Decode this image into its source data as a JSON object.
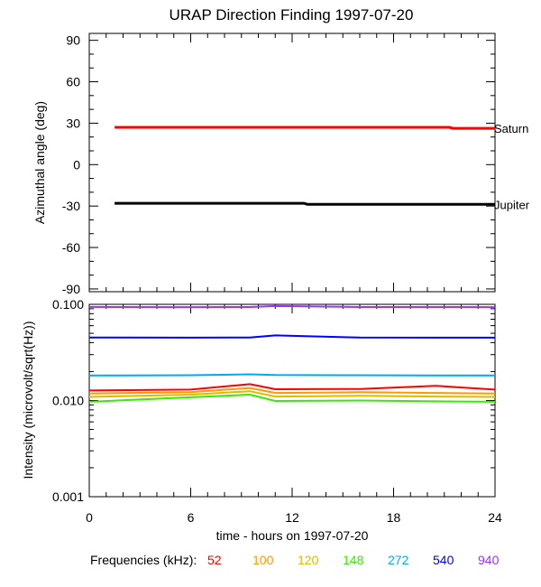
{
  "title": "URAP Direction Finding  1997-07-20",
  "chart_data": [
    {
      "type": "line",
      "ylabel": "Azimuthal angle (deg)",
      "ylim": [
        -92,
        95
      ],
      "yticks": [
        "90",
        "60",
        "30",
        "0",
        "-30",
        "-60",
        "-90"
      ],
      "xlim": [
        0,
        24
      ],
      "series": [
        {
          "name": "Saturn",
          "color": "#ff0000",
          "points": [
            [
              1.5,
              27
            ],
            [
              21.3,
              27
            ],
            [
              21.5,
              26.3
            ],
            [
              24,
              26.3
            ]
          ]
        },
        {
          "name": "Jupiter",
          "color": "#000000",
          "points": [
            [
              1.5,
              -28
            ],
            [
              12.7,
              -28
            ],
            [
              12.9,
              -28.8
            ],
            [
              24,
              -28.8
            ]
          ]
        }
      ]
    },
    {
      "type": "line",
      "ylabel": "Intensity (microvolt/sqrt(Hz))",
      "yscale": "log",
      "ylim": [
        0.001,
        0.1
      ],
      "yticks": [
        "0.100",
        "0.010",
        "0.001"
      ],
      "xlabel": "time - hours on 1997-07-20",
      "xlim": [
        0,
        24
      ],
      "xticks": [
        "0",
        "6",
        "12",
        "18",
        "24"
      ],
      "legend_label": "Frequencies (kHz):",
      "series": [
        {
          "name": "52",
          "color": "#ff0000",
          "x": [
            0,
            6,
            9.5,
            11,
            16,
            20.5,
            24
          ],
          "y": [
            0.0127,
            0.013,
            0.0148,
            0.0131,
            0.0132,
            0.0142,
            0.013
          ]
        },
        {
          "name": "100",
          "color": "#ff9900",
          "x": [
            0,
            6,
            9.5,
            11,
            16,
            20.5,
            24
          ],
          "y": [
            0.0118,
            0.0122,
            0.0135,
            0.012,
            0.0122,
            0.012,
            0.0118
          ]
        },
        {
          "name": "120",
          "color": "#ddbb00",
          "x": [
            0,
            6,
            9.5,
            11,
            16,
            20.5,
            24
          ],
          "y": [
            0.0109,
            0.0115,
            0.0125,
            0.011,
            0.0112,
            0.011,
            0.0109
          ]
        },
        {
          "name": "148",
          "color": "#33ee00",
          "x": [
            0,
            6,
            9.5,
            11,
            16,
            20.5,
            24
          ],
          "y": [
            0.0097,
            0.0108,
            0.0115,
            0.0099,
            0.01,
            0.0098,
            0.0097
          ]
        },
        {
          "name": "272",
          "color": "#00aaee",
          "x": [
            0,
            6,
            9.5,
            11,
            16,
            20.5,
            24
          ],
          "y": [
            0.0182,
            0.0183,
            0.0187,
            0.0184,
            0.0183,
            0.0182,
            0.0182
          ]
        },
        {
          "name": "540",
          "color": "#0000ff",
          "x": [
            0,
            6,
            9.5,
            11,
            16,
            20.5,
            24
          ],
          "y": [
            0.0452,
            0.045,
            0.0452,
            0.0475,
            0.0451,
            0.045,
            0.045
          ]
        },
        {
          "name": "940",
          "color": "#9933ff",
          "x": [
            0,
            6,
            9.5,
            11,
            16,
            20.5,
            24
          ],
          "y": [
            0.094,
            0.0935,
            0.0938,
            0.096,
            0.0938,
            0.0937,
            0.0935
          ]
        }
      ]
    }
  ]
}
